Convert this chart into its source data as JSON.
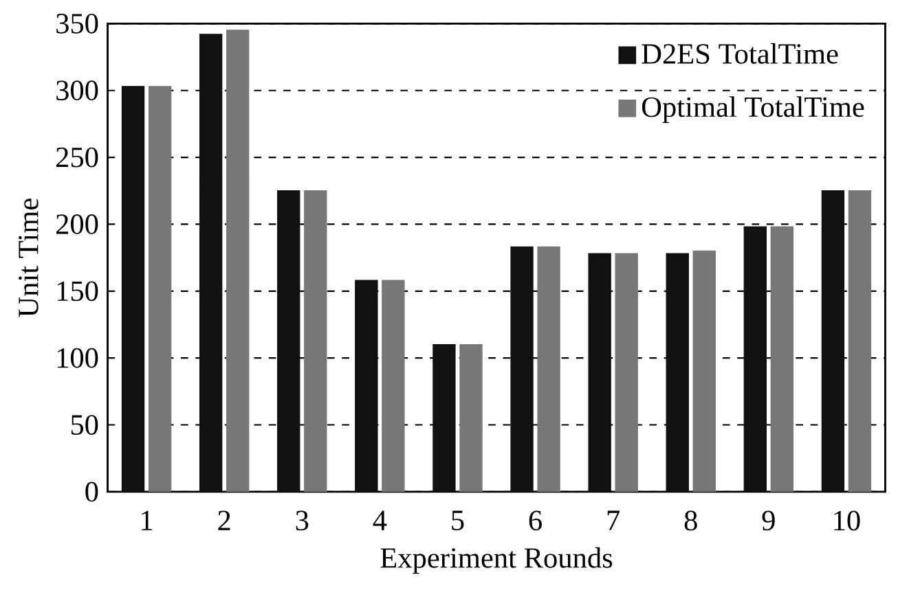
{
  "chart_data": {
    "type": "bar",
    "xlabel": "Experiment Rounds",
    "ylabel": "Unit Time",
    "categories": [
      "1",
      "2",
      "3",
      "4",
      "5",
      "6",
      "7",
      "8",
      "9",
      "10"
    ],
    "series": [
      {
        "name": "D2ES TotalTime",
        "color": "#111111",
        "values": [
          303,
          342,
          225,
          158,
          110,
          183,
          178,
          178,
          198,
          225
        ]
      },
      {
        "name": "Optimal TotalTime",
        "color": "#777777",
        "values": [
          303,
          345,
          225,
          158,
          110,
          183,
          178,
          180,
          198,
          225
        ]
      }
    ],
    "ylim": [
      0,
      350
    ],
    "yticks": [
      0,
      50,
      100,
      150,
      200,
      250,
      300,
      350
    ],
    "grid": "y",
    "legend": "top right"
  }
}
